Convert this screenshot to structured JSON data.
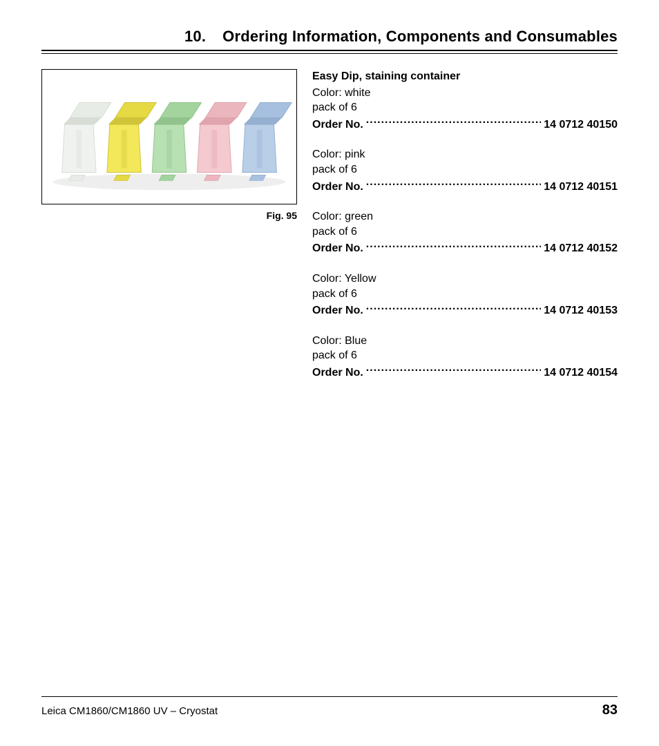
{
  "header": {
    "chapter_number": "10.",
    "chapter_title": "Ordering Information, Components and Consumables"
  },
  "figure": {
    "caption": "Fig. 95",
    "containers": [
      {
        "body": "#f0f2ef",
        "lid": "#e8ece6",
        "shadow": "#d7dcd5"
      },
      {
        "body": "#f2e85a",
        "lid": "#e6da44",
        "shadow": "#cfc43a"
      },
      {
        "body": "#b7e0b3",
        "lid": "#a3d49e",
        "shadow": "#92c38d"
      },
      {
        "body": "#f4c9cf",
        "lid": "#ecb6be",
        "shadow": "#dfa4ad"
      },
      {
        "body": "#b9cfe8",
        "lid": "#a7c0df",
        "shadow": "#95afd0"
      }
    ]
  },
  "product": {
    "title": "Easy Dip, staining container",
    "order_label": "Order No.",
    "variants": [
      {
        "color_line": "Color: white",
        "pack_line": "pack of 6",
        "order_no": "14 0712 40150"
      },
      {
        "color_line": "Color: pink",
        "pack_line": "pack of 6",
        "order_no": "14 0712 40151"
      },
      {
        "color_line": "Color: green",
        "pack_line": "pack of 6",
        "order_no": "14 0712 40152"
      },
      {
        "color_line": "Color: Yellow",
        "pack_line": "pack of 6",
        "order_no": "14 0712 40153"
      },
      {
        "color_line": "Color: Blue",
        "pack_line": "pack of 6",
        "order_no": "14 0712 40154"
      }
    ]
  },
  "footer": {
    "left": "Leica CM1860/CM1860 UV – Cryostat",
    "page": "83"
  }
}
